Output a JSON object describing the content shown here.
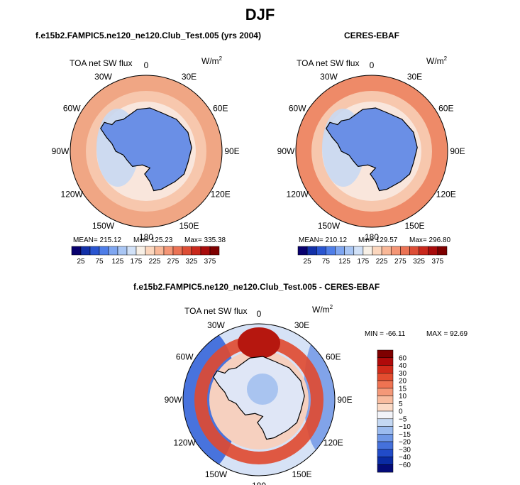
{
  "title": "DJF",
  "panels": [
    {
      "title": "f.e15b2.FAMPIC5.ne120_ne120.Club_Test.005 (yrs 2004)",
      "variable": "TOA net SW flux",
      "units": "W/m",
      "units_sup": "2",
      "mean_label": "MEAN= 215.12",
      "min_label": "Min= 125.23",
      "max_label": "Max= 335.38"
    },
    {
      "title": "CERES-EBAF",
      "variable": "TOA net SW flux",
      "units": "W/m",
      "units_sup": "2",
      "mean_label": "MEAN= 210.12",
      "min_label": "Min= 129.57",
      "max_label": "Max= 296.80"
    },
    {
      "title": "f.e15b2.FAMPIC5.ne120_ne120.Club_Test.005 - CERES-EBAF",
      "variable": "TOA net SW flux",
      "units": "W/m",
      "units_sup": "2",
      "min_label": "MIN = -66.11",
      "max_label": "MAX = 92.69"
    }
  ],
  "lon_labels": [
    "0",
    "30E",
    "60E",
    "90E",
    "120E",
    "150E",
    "180",
    "150W",
    "120W",
    "90W",
    "60W",
    "30W"
  ],
  "colorbar_abs": {
    "ticks": [
      "25",
      "75",
      "125",
      "175",
      "225",
      "275",
      "325",
      "375"
    ],
    "colors": [
      "#08006e",
      "#1230a8",
      "#2a55d0",
      "#4f7ee8",
      "#7fa6f0",
      "#a9c6f4",
      "#d1e1f7",
      "#f8f0e6",
      "#fbd6bd",
      "#f9b898",
      "#f49676",
      "#eb7355",
      "#dd4e36",
      "#c9281c",
      "#a80c0c",
      "#7e0000"
    ]
  },
  "colorbar_diff": {
    "ticks": [
      "60",
      "40",
      "30",
      "20",
      "15",
      "10",
      "5",
      "0",
      "−5",
      "−10",
      "−15",
      "−20",
      "−30",
      "−40",
      "−60"
    ],
    "colors": [
      "#7e0000",
      "#b00a0a",
      "#d12a1a",
      "#e34d30",
      "#ef7352",
      "#f49878",
      "#f8bb9e",
      "#fbdac6",
      "#f2f3f8",
      "#c4d8f3",
      "#9bbbef",
      "#6f97e6",
      "#4571db",
      "#214bc8",
      "#0a2ba3",
      "#040b78"
    ]
  },
  "colors": {
    "land": "#6a8fe6",
    "coast": "#000000",
    "ocean_warm": "#f0a684",
    "ocean_mid": "#f7c7ad",
    "ocean_edge": "#ee8a68",
    "diff_neutral": "#f3ede8"
  }
}
